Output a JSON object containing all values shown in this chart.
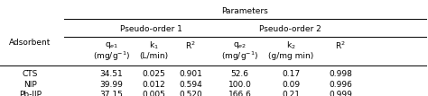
{
  "title": "Parameters",
  "pseudo1_label": "Pseudo-order 1",
  "pseudo2_label": "Pseudo-order 2",
  "adsorbent_label": "Adsorbent",
  "col_headers_line1": [
    "q$_{e1}$",
    "k$_{1}$",
    "R$^{2}$",
    "q$_{e2}$",
    "k$_{2}$",
    "R$^{2}$"
  ],
  "col_headers_line2": [
    "(mg/g$^{-1}$)",
    "(L/min)",
    "",
    "(mg/g$^{-1}$)",
    "(g/mg min)",
    ""
  ],
  "rows": [
    {
      "name": "CTS",
      "values": [
        "34.51",
        "0.025",
        "0.901",
        "52.6",
        "0.17",
        "0.998"
      ]
    },
    {
      "name": "NIP",
      "values": [
        "39.99",
        "0.012",
        "0.594",
        "100.0",
        "0.09",
        "0.996"
      ]
    },
    {
      "name": "Pb-IIP",
      "values": [
        "37.15",
        "0.005",
        "0.520",
        "166.6",
        "0.21",
        "0.999"
      ]
    }
  ],
  "background_color": "#ffffff",
  "font_size": 6.5,
  "font_family": "DejaVu Sans"
}
